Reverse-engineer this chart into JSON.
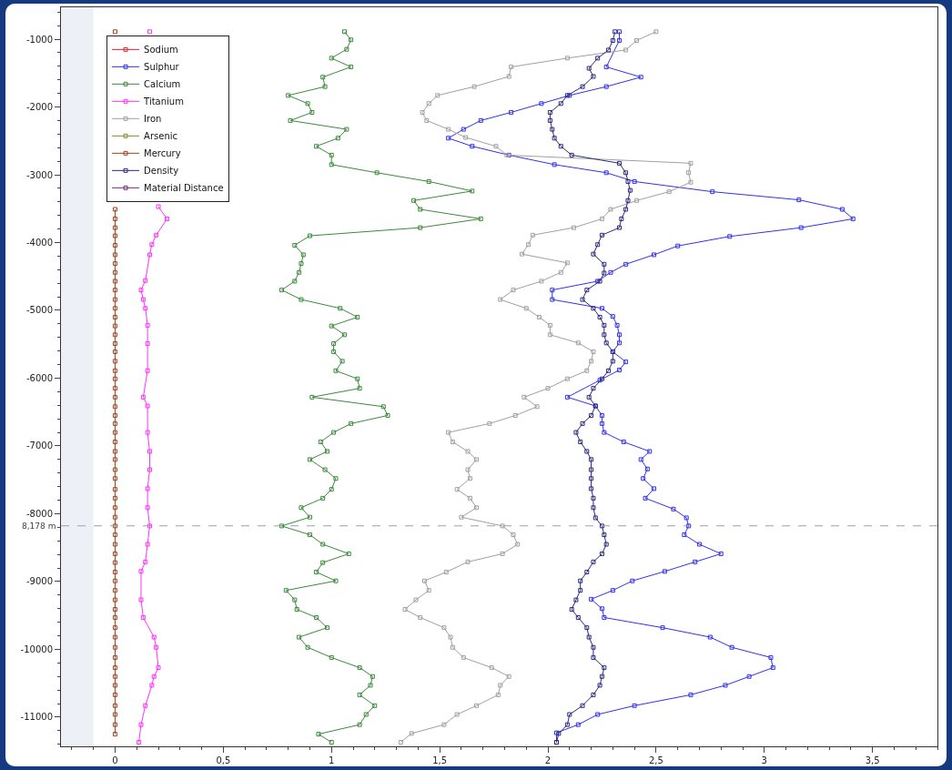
{
  "chart_data": {
    "type": "line",
    "marker": "square",
    "line_style": "solid",
    "legend": "top left",
    "grid": false,
    "xlim": [
      -0.25,
      3.8
    ],
    "ylim": [
      -11430,
      -530
    ],
    "xticks": [
      0,
      {
        "value": 0.5,
        "label": "0,5"
      },
      1,
      {
        "value": 1.5,
        "label": "1,5"
      },
      2,
      {
        "value": 2.5,
        "label": "2,5"
      },
      3,
      {
        "value": 3.5,
        "label": "3,5"
      }
    ],
    "yticks": [
      -1000,
      -2000,
      -3000,
      -4000,
      -5000,
      -6000,
      -7000,
      -8000,
      -9000,
      -10000,
      -11000
    ],
    "ref_lines": [
      {
        "axis": "y",
        "value": -8178,
        "label": "8,178 m",
        "color": "#9aa0b0",
        "line_style": "dashed"
      }
    ],
    "bands": [
      {
        "axis": "x",
        "from": -0.25,
        "to": -0.1,
        "color": "#eef0f8"
      }
    ],
    "series": [
      {
        "name": "Sodium",
        "color": "#e0202a"
      },
      {
        "name": "Sulphur",
        "color": "#3030f0",
        "x": [
          2.33,
          2.33,
          2.27,
          2.43,
          2.27,
          2.1,
          1.97,
          1.83,
          1.69,
          1.61,
          1.54,
          1.65,
          1.82,
          2.03,
          2.27,
          2.4,
          2.76,
          3.16,
          3.36,
          3.41,
          3.17,
          2.84,
          2.6,
          2.49,
          2.36,
          2.29,
          2.23,
          2.02,
          2.02,
          2.25,
          2.3,
          2.32,
          2.33,
          2.33,
          2.3,
          2.36,
          2.33,
          2.24,
          2.09,
          2.22,
          2.25,
          2.25,
          2.26,
          2.35,
          2.47,
          2.43,
          2.46,
          2.44,
          2.49,
          2.45,
          2.58,
          2.64,
          2.65,
          2.63,
          2.7,
          2.8,
          2.68,
          2.54,
          2.39,
          2.3,
          2.2,
          2.25,
          2.26,
          2.53,
          2.75,
          2.85,
          3.03,
          3.04,
          2.93,
          2.82,
          2.66,
          2.4,
          2.23,
          2.14,
          2.04,
          2.04
        ],
        "values": [
          -890,
          -1020,
          -1410,
          -1560,
          -1700,
          -1830,
          -1950,
          -2080,
          -2200,
          -2330,
          -2460,
          -2580,
          -2710,
          -2850,
          -2970,
          -3100,
          -3250,
          -3370,
          -3510,
          -3650,
          -3780,
          -3910,
          -4050,
          -4180,
          -4320,
          -4440,
          -4570,
          -4700,
          -4840,
          -4970,
          -5090,
          -5220,
          -5360,
          -5480,
          -5610,
          -5760,
          -5880,
          -6030,
          -6280,
          -6410,
          -6550,
          -6670,
          -6800,
          -6940,
          -7080,
          -7200,
          -7340,
          -7480,
          -7630,
          -7770,
          -7930,
          -8060,
          -8180,
          -8310,
          -8450,
          -8590,
          -8710,
          -8850,
          -8990,
          -9130,
          -9260,
          -9400,
          -9530,
          -9680,
          -9820,
          -9970,
          -10120,
          -10270,
          -10400,
          -10530,
          -10670,
          -10830,
          -10960,
          -11110,
          -11230,
          -11370
        ]
      },
      {
        "name": "Calcium",
        "color": "#3a8a3a",
        "x": [
          1.06,
          1.09,
          1.07,
          1.0,
          1.09,
          0.96,
          0.97,
          0.8,
          0.89,
          0.91,
          0.81,
          1.07,
          1.03,
          0.93,
          1.0,
          1.0,
          1.21,
          1.45,
          1.65,
          1.38,
          1.41,
          1.69,
          1.41,
          0.9,
          0.83,
          0.87,
          0.86,
          0.85,
          0.83,
          0.77,
          0.86,
          1.04,
          1.12,
          1.0,
          1.06,
          1.01,
          1.01,
          1.05,
          1.02,
          1.12,
          1.13,
          0.91,
          1.24,
          1.26,
          1.09,
          1.01,
          0.95,
          0.98,
          0.9,
          0.97,
          1.02,
          1.0,
          0.96,
          0.86,
          0.9,
          0.77,
          0.9,
          0.96,
          1.08,
          0.96,
          0.93,
          1.02,
          0.79,
          0.83,
          0.84,
          0.93,
          0.98,
          0.85,
          0.89,
          1.0,
          1.13,
          1.19,
          1.18,
          1.13,
          1.2,
          1.16,
          1.13,
          0.94,
          1.0
        ],
        "values": [
          -890,
          -1010,
          -1150,
          -1280,
          -1410,
          -1560,
          -1700,
          -1830,
          -1950,
          -2080,
          -2200,
          -2330,
          -2460,
          -2580,
          -2710,
          -2850,
          -2970,
          -3100,
          -3240,
          -3380,
          -3510,
          -3650,
          -3780,
          -3900,
          -4040,
          -4180,
          -4310,
          -4440,
          -4570,
          -4700,
          -4840,
          -4970,
          -5100,
          -5230,
          -5360,
          -5490,
          -5610,
          -5750,
          -5890,
          -6010,
          -6150,
          -6280,
          -6420,
          -6550,
          -6670,
          -6800,
          -6940,
          -7080,
          -7200,
          -7350,
          -7480,
          -7640,
          -7770,
          -7910,
          -8050,
          -8180,
          -8310,
          -8450,
          -8590,
          -8720,
          -8860,
          -8990,
          -9130,
          -9270,
          -9410,
          -9530,
          -9680,
          -9820,
          -9970,
          -10120,
          -10270,
          -10400,
          -10530,
          -10670,
          -10830,
          -10960,
          -11110,
          -11250,
          -11370
        ]
      },
      {
        "name": "Titanium",
        "color": "#ff30ff",
        "x": [
          0.16,
          null,
          0.2,
          0.24,
          0.19,
          0.17,
          0.16,
          0.14,
          0.12,
          0.13,
          0.14,
          0.15,
          0.15,
          0.15,
          0.13,
          0.15,
          0.15,
          0.16,
          0.16,
          0.15,
          0.15,
          0.16,
          0.15,
          0.14,
          0.12,
          0.12,
          0.13,
          0.18,
          0.19,
          0.2,
          0.18,
          0.17,
          0.14,
          0.12,
          0.11
        ],
        "values": [
          -890,
          null,
          -3470,
          -3650,
          -3890,
          -4030,
          -4180,
          -4560,
          -4700,
          -4840,
          -4970,
          -5220,
          -5490,
          -5890,
          -6280,
          -6410,
          -6800,
          -7080,
          -7350,
          -7630,
          -7910,
          -8180,
          -8450,
          -8710,
          -8850,
          -9270,
          -9530,
          -9820,
          -9970,
          -10270,
          -10400,
          -10530,
          -10830,
          -11110,
          -11370
        ]
      },
      {
        "name": "Iron",
        "color": "#a0a0a0",
        "x": [
          2.5,
          2.41,
          2.36,
          2.09,
          1.83,
          1.82,
          1.66,
          1.49,
          1.45,
          1.42,
          1.44,
          1.54,
          1.62,
          1.76,
          1.81,
          2.66,
          2.65,
          2.66,
          2.56,
          2.41,
          2.29,
          2.25,
          2.12,
          1.93,
          1.91,
          1.88,
          2.09,
          2.06,
          1.97,
          1.84,
          1.78,
          1.9,
          1.96,
          2.01,
          2.01,
          2.14,
          2.21,
          2.2,
          2.18,
          2.09,
          2.0,
          1.89,
          1.95,
          1.85,
          1.73,
          1.54,
          1.56,
          1.63,
          1.67,
          1.63,
          1.64,
          1.58,
          1.64,
          1.67,
          1.6,
          1.79,
          1.84,
          1.86,
          1.79,
          1.63,
          1.53,
          1.43,
          1.45,
          1.39,
          1.34,
          1.41,
          1.52,
          1.55,
          1.56,
          1.61,
          1.74,
          1.82,
          1.78,
          1.77,
          1.67,
          1.58,
          1.52,
          1.37,
          1.32
        ],
        "values": [
          -890,
          -1020,
          -1160,
          -1280,
          -1410,
          -1550,
          -1700,
          -1830,
          -1950,
          -2080,
          -2200,
          -2330,
          -2450,
          -2580,
          -2710,
          -2830,
          -2970,
          -3110,
          -3250,
          -3380,
          -3510,
          -3650,
          -3780,
          -3890,
          -4030,
          -4170,
          -4300,
          -4440,
          -4570,
          -4700,
          -4840,
          -4970,
          -5100,
          -5220,
          -5360,
          -5480,
          -5610,
          -5750,
          -5890,
          -6010,
          -6150,
          -6280,
          -6420,
          -6550,
          -6670,
          -6800,
          -6940,
          -7080,
          -7200,
          -7350,
          -7480,
          -7640,
          -7770,
          -7910,
          -8050,
          -8180,
          -8310,
          -8450,
          -8590,
          -8710,
          -8860,
          -8990,
          -9130,
          -9270,
          -9410,
          -9530,
          -9680,
          -9820,
          -9970,
          -10120,
          -10270,
          -10400,
          -10530,
          -10670,
          -10830,
          -10960,
          -11110,
          -11240,
          -11370
        ]
      },
      {
        "name": "Arsenic",
        "color": "#8a8a30"
      },
      {
        "name": "Mercury",
        "color": "#a0401a",
        "x": [
          0,
          null,
          0,
          0,
          0,
          0,
          0,
          0,
          0,
          0,
          0,
          0,
          0,
          0,
          0,
          0,
          0,
          0,
          0,
          0,
          0,
          0,
          0,
          0,
          0,
          0,
          0,
          0,
          0,
          0,
          0,
          0,
          0,
          0,
          0,
          0,
          0,
          0,
          0,
          0,
          0,
          0,
          0,
          0,
          0,
          0,
          0,
          0,
          0,
          0,
          0,
          0,
          0,
          0,
          0,
          0,
          0,
          0,
          0,
          0
        ],
        "values": [
          -890,
          null,
          -3510,
          -3650,
          -3780,
          -3900,
          -4040,
          -4180,
          -4310,
          -4440,
          -4570,
          -4700,
          -4840,
          -4970,
          -5100,
          -5230,
          -5360,
          -5490,
          -5610,
          -5750,
          -5890,
          -6010,
          -6150,
          -6280,
          -6420,
          -6550,
          -6670,
          -6800,
          -6940,
          -7080,
          -7200,
          -7350,
          -7480,
          -7640,
          -7770,
          -7910,
          -8050,
          -8180,
          -8310,
          -8450,
          -8590,
          -8720,
          -8860,
          -8990,
          -9130,
          -9270,
          -9410,
          -9530,
          -9680,
          -9820,
          -9970,
          -10120,
          -10270,
          -10400,
          -10530,
          -10670,
          -10830,
          -10960,
          -11110,
          -11250
        ]
      },
      {
        "name": "Density",
        "color": "#2a2a80",
        "x": [
          2.31,
          2.3,
          2.28,
          2.23,
          2.19,
          2.21,
          2.16,
          2.09,
          2.06,
          2.01,
          2.01,
          2.02,
          2.03,
          2.06,
          2.11,
          2.33,
          2.36,
          2.37,
          2.38,
          2.37,
          2.36,
          2.34,
          2.33,
          2.25,
          2.23,
          2.21,
          2.26,
          2.26,
          2.24,
          2.18,
          2.16,
          2.21,
          2.24,
          2.26,
          2.26,
          2.27,
          2.3,
          2.3,
          2.28,
          2.25,
          2.21,
          2.19,
          2.22,
          2.2,
          2.16,
          2.13,
          2.15,
          2.18,
          2.2,
          2.2,
          2.2,
          2.2,
          2.21,
          2.21,
          2.22,
          2.25,
          2.26,
          2.27,
          2.25,
          2.21,
          2.18,
          2.15,
          2.15,
          2.13,
          2.11,
          2.14,
          2.18,
          2.19,
          2.21,
          2.21,
          2.26,
          2.25,
          2.24,
          2.21,
          2.16,
          2.1,
          2.09,
          2.05,
          2.04
        ],
        "values": [
          -890,
          -1020,
          -1160,
          -1280,
          -1430,
          -1550,
          -1700,
          -1830,
          -1950,
          -2080,
          -2200,
          -2330,
          -2460,
          -2580,
          -2710,
          -2830,
          -2970,
          -3100,
          -3230,
          -3380,
          -3510,
          -3650,
          -3780,
          -3890,
          -4030,
          -4170,
          -4320,
          -4450,
          -4570,
          -4700,
          -4840,
          -4970,
          -5100,
          -5220,
          -5360,
          -5480,
          -5610,
          -5750,
          -5890,
          -6010,
          -6150,
          -6280,
          -6410,
          -6550,
          -6670,
          -6800,
          -6940,
          -7080,
          -7200,
          -7350,
          -7480,
          -7630,
          -7770,
          -7910,
          -8060,
          -8180,
          -8310,
          -8450,
          -8590,
          -8710,
          -8860,
          -8990,
          -9130,
          -9270,
          -9410,
          -9530,
          -9680,
          -9820,
          -9970,
          -10120,
          -10270,
          -10400,
          -10530,
          -10670,
          -10830,
          -10960,
          -11110,
          -11240,
          -11370
        ]
      },
      {
        "name": "Material Distance",
        "color": "#7a2a7a"
      }
    ]
  }
}
